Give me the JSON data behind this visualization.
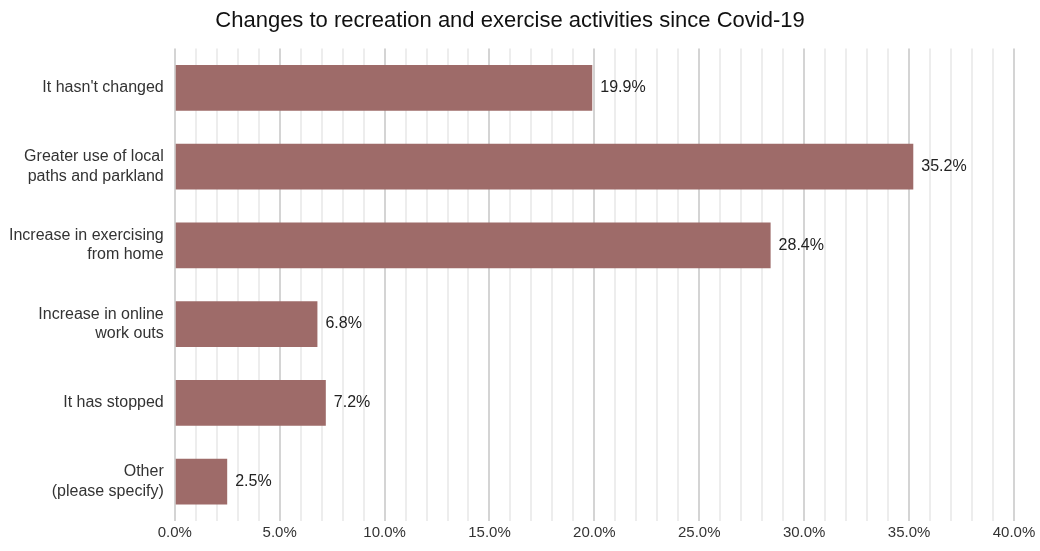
{
  "chart_data": {
    "type": "bar",
    "orientation": "horizontal",
    "title": "Changes to recreation and exercise activities since Covid-19",
    "categories": [
      "It hasn't changed",
      "Greater use of local\npaths and parkland",
      "Increase in exercising\nfrom home",
      "Increase in online\nwork outs",
      "It has stopped",
      "Other\n(please specify)"
    ],
    "values": [
      19.9,
      35.2,
      28.4,
      6.8,
      7.2,
      2.5
    ],
    "value_labels": [
      "19.9%",
      "35.2%",
      "28.4%",
      "6.8%",
      "7.2%",
      "2.5%"
    ],
    "color": "#9e6b69",
    "xlim": [
      0,
      40
    ],
    "xticks": [
      {
        "value": 0,
        "label": "0.0%"
      },
      {
        "value": 1,
        "label": null
      },
      {
        "value": 2,
        "label": null
      },
      {
        "value": 3,
        "label": null
      },
      {
        "value": 4,
        "label": null
      },
      {
        "value": 5,
        "label": "5.0%"
      },
      {
        "value": 6,
        "label": null
      },
      {
        "value": 7,
        "label": null
      },
      {
        "value": 8,
        "label": null
      },
      {
        "value": 9,
        "label": null
      },
      {
        "value": 10,
        "label": "10.0%"
      },
      {
        "value": 11,
        "label": null
      },
      {
        "value": 12,
        "label": null
      },
      {
        "value": 13,
        "label": null
      },
      {
        "value": 14,
        "label": null
      },
      {
        "value": 15,
        "label": "15.0%"
      },
      {
        "value": 16,
        "label": null
      },
      {
        "value": 17,
        "label": null
      },
      {
        "value": 18,
        "label": null
      },
      {
        "value": 19,
        "label": null
      },
      {
        "value": 20,
        "label": "20.0%"
      },
      {
        "value": 21,
        "label": null
      },
      {
        "value": 22,
        "label": null
      },
      {
        "value": 23,
        "label": null
      },
      {
        "value": 24,
        "label": null
      },
      {
        "value": 25,
        "label": "25.0%"
      },
      {
        "value": 26,
        "label": null
      },
      {
        "value": 27,
        "label": null
      },
      {
        "value": 28,
        "label": null
      },
      {
        "value": 29,
        "label": null
      },
      {
        "value": 30,
        "label": "30.0%"
      },
      {
        "value": 31,
        "label": null
      },
      {
        "value": 32,
        "label": null
      },
      {
        "value": 33,
        "label": null
      },
      {
        "value": 34,
        "label": null
      },
      {
        "value": 35,
        "label": "35.0%"
      },
      {
        "value": 36,
        "label": null
      },
      {
        "value": 37,
        "label": null
      },
      {
        "value": 38,
        "label": null
      },
      {
        "value": 39,
        "label": null
      },
      {
        "value": 40,
        "label": "40.0%"
      }
    ],
    "grid": "x",
    "legend": false
  }
}
